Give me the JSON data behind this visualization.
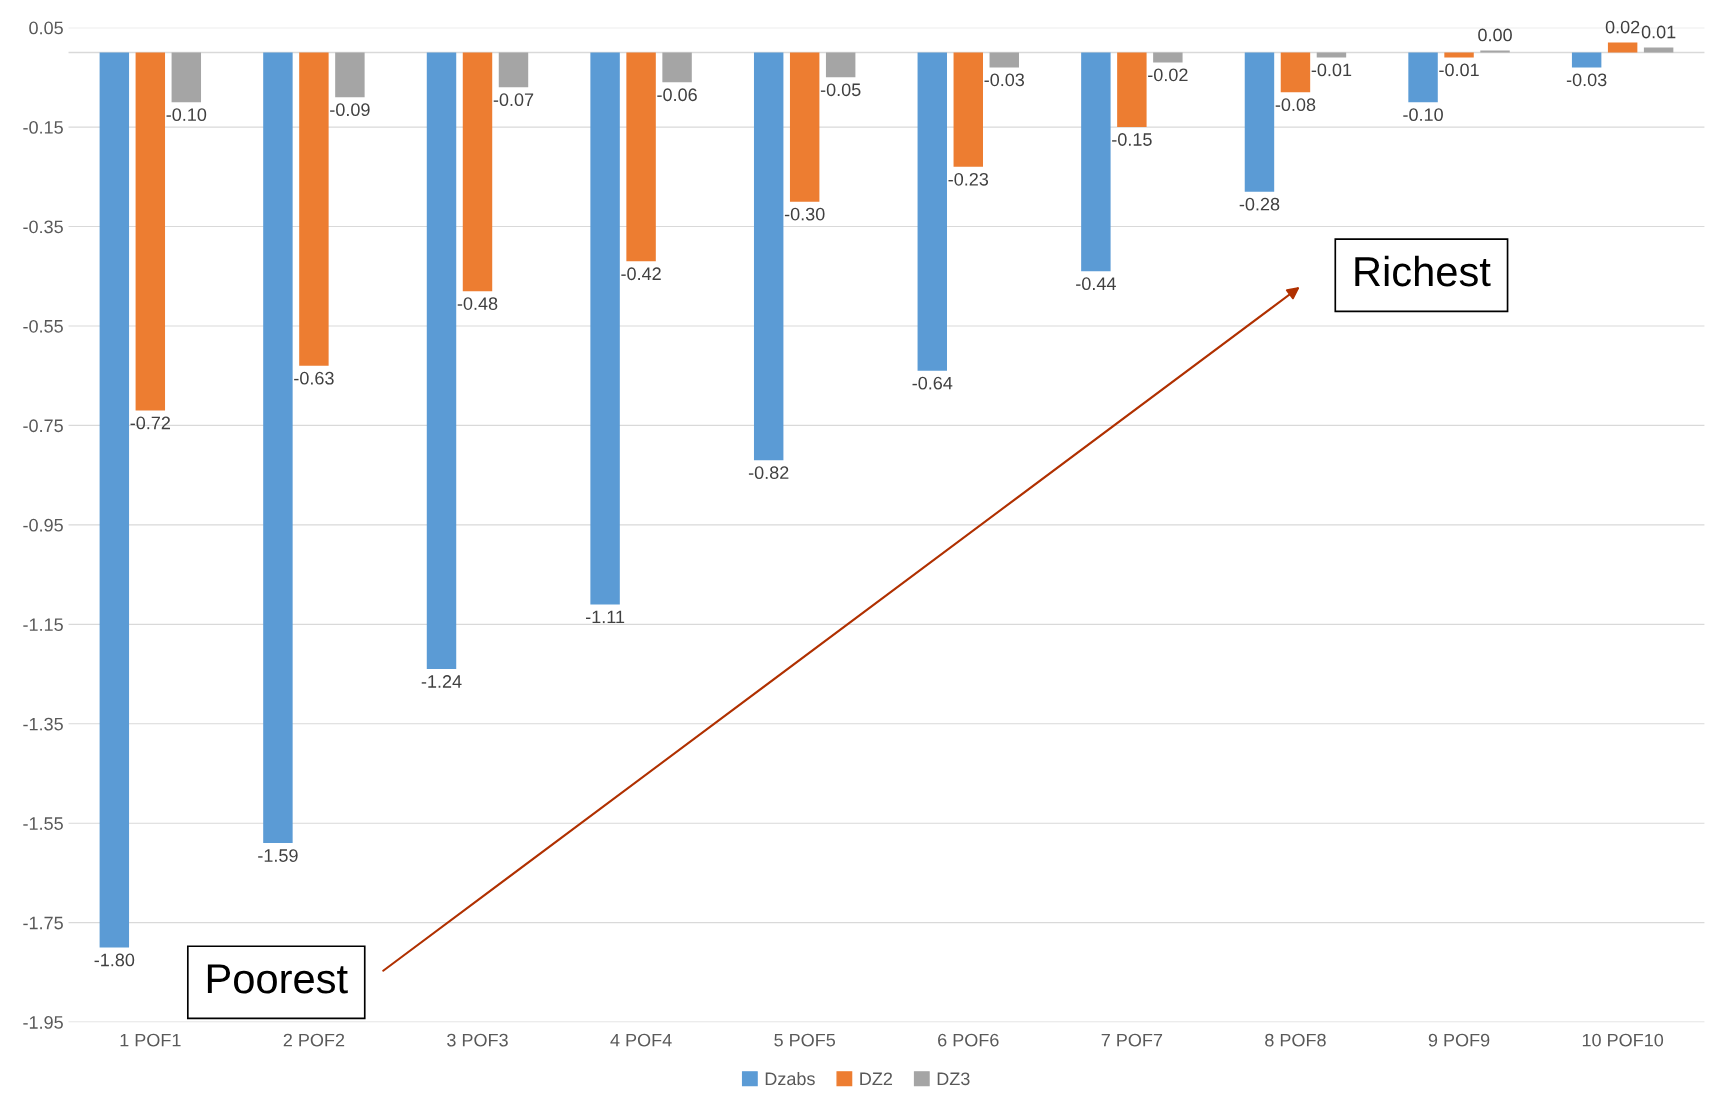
{
  "chart_data": {
    "type": "bar",
    "categories": [
      "1 POF1",
      "2 POF2",
      "3 POF3",
      "4 POF4",
      "5 POF5",
      "6 POF6",
      "7 POF7",
      "8 POF8",
      "9 POF9",
      "10 POF10"
    ],
    "series": [
      {
        "name": "Dzabs",
        "color": "#5b9bd5",
        "values": [
          -1.8,
          -1.59,
          -1.24,
          -1.11,
          -0.82,
          -0.64,
          -0.44,
          -0.28,
          -0.1,
          -0.03
        ],
        "value_labels": [
          "-1.80",
          "-1.59",
          "-1.24",
          "-1.11",
          "-0.82",
          "-0.64",
          "-0.44",
          "-0.28",
          "-0.10",
          "-0.03"
        ]
      },
      {
        "name": "DZ2",
        "color": "#ed7d31",
        "values": [
          -0.72,
          -0.63,
          -0.48,
          -0.42,
          -0.3,
          -0.23,
          -0.15,
          -0.08,
          -0.01,
          0.02
        ],
        "value_labels": [
          "-0.72",
          "-0.63",
          "-0.48",
          "-0.42",
          "-0.30",
          "-0.23",
          "-0.15",
          "-0.08",
          "-0.01",
          "0.02"
        ]
      },
      {
        "name": "DZ3",
        "color": "#a5a5a5",
        "values": [
          -0.1,
          -0.09,
          -0.07,
          -0.06,
          -0.05,
          -0.03,
          -0.02,
          -0.01,
          0.004,
          0.01
        ],
        "value_labels": [
          "-0.10",
          "-0.09",
          "-0.07",
          "-0.06",
          "-0.05",
          "-0.03",
          "-0.02",
          "-0.01",
          "0.00",
          "0.01"
        ]
      }
    ],
    "ylim": [
      -1.95,
      0.05
    ],
    "yticks": [
      {
        "value": 0.05,
        "label": "0.05"
      },
      {
        "value": -0.15,
        "label": "-0.15"
      },
      {
        "value": -0.35,
        "label": "-0.35"
      },
      {
        "value": -0.55,
        "label": "-0.55"
      },
      {
        "value": -0.75,
        "label": "-0.75"
      },
      {
        "value": -0.95,
        "label": "-0.95"
      },
      {
        "value": -1.15,
        "label": "-1.15"
      },
      {
        "value": -1.35,
        "label": "-1.35"
      },
      {
        "value": -1.55,
        "label": "-1.55"
      },
      {
        "value": -1.75,
        "label": "-1.75"
      },
      {
        "value": -1.95,
        "label": "-1.95"
      }
    ],
    "grid": "y",
    "legend": "bottom",
    "annotations": [
      "Poorest",
      "Richest"
    ]
  }
}
